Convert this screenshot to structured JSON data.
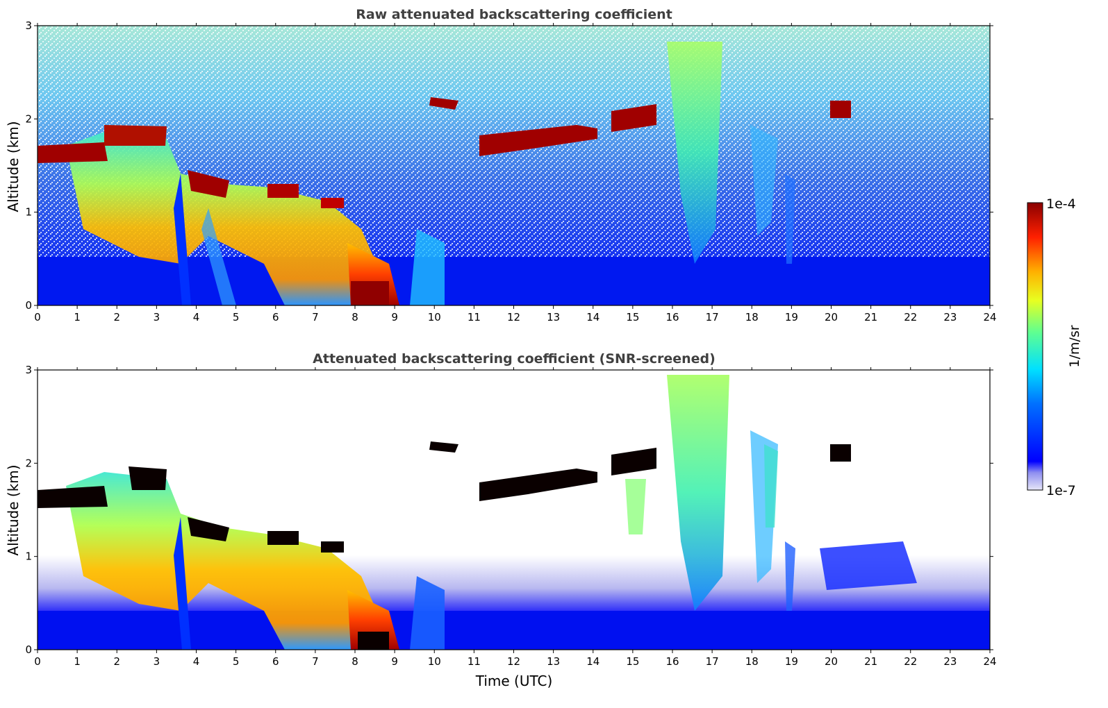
{
  "chart_data": [
    {
      "type": "heatmap",
      "title": "Raw attenuated backscattering coefficient",
      "ylabel": "Altitude (km)",
      "xlabel": "",
      "xlim": [
        0,
        24
      ],
      "ylim": [
        0,
        3
      ],
      "xticks": [
        "0",
        "1",
        "2",
        "3",
        "4",
        "5",
        "6",
        "7",
        "8",
        "9",
        "10",
        "11",
        "12",
        "13",
        "14",
        "15",
        "16",
        "17",
        "18",
        "19",
        "20",
        "21",
        "22",
        "23",
        "24"
      ],
      "yticks": [
        "0",
        "1",
        "2",
        "3"
      ],
      "cloud_layers": [
        {
          "x_start": 0.0,
          "x_end": 1.6,
          "altitude": 1.65,
          "intensity": "1e-4"
        },
        {
          "x_start": 1.6,
          "x_end": 3.2,
          "altitude": 1.85,
          "intensity": "1e-4"
        },
        {
          "x_start": 3.7,
          "x_end": 4.6,
          "altitude": 1.3,
          "intensity": "1e-4"
        },
        {
          "x_start": 5.6,
          "x_end": 6.6,
          "altitude": 1.25,
          "intensity": "1e-4"
        },
        {
          "x_start": 7.1,
          "x_end": 7.6,
          "altitude": 1.1,
          "intensity": "1e-4"
        },
        {
          "x_start": 8.0,
          "x_end": 8.8,
          "altitude": 0.1,
          "intensity": "1e-4"
        },
        {
          "x_start": 10.0,
          "x_end": 10.6,
          "altitude": 2.2,
          "intensity": "1e-4"
        },
        {
          "x_start": 11.0,
          "x_end": 14.0,
          "altitude": 1.85,
          "intensity": "1e-4"
        },
        {
          "x_start": 14.5,
          "x_end": 15.6,
          "altitude": 2.0,
          "intensity": "1e-4"
        },
        {
          "x_start": 20.0,
          "x_end": 20.5,
          "altitude": 2.1,
          "intensity": "1e-4"
        }
      ]
    },
    {
      "type": "heatmap",
      "title": "Attenuated backscattering coefficient (SNR-screened)",
      "ylabel": "Altitude (km)",
      "xlabel": "Time (UTC)",
      "xlim": [
        0,
        24
      ],
      "ylim": [
        0,
        3
      ],
      "xticks": [
        "0",
        "1",
        "2",
        "3",
        "4",
        "5",
        "6",
        "7",
        "8",
        "9",
        "10",
        "11",
        "12",
        "13",
        "14",
        "15",
        "16",
        "17",
        "18",
        "19",
        "20",
        "21",
        "22",
        "23",
        "24"
      ],
      "yticks": [
        "0",
        "1",
        "2",
        "3"
      ]
    }
  ],
  "colorbar": {
    "label": "1/m/sr",
    "max_label": "1e-4",
    "min_label": "1e-7",
    "scale": "log",
    "colormap": "jet",
    "lowest_color": "#e8e8f8"
  }
}
